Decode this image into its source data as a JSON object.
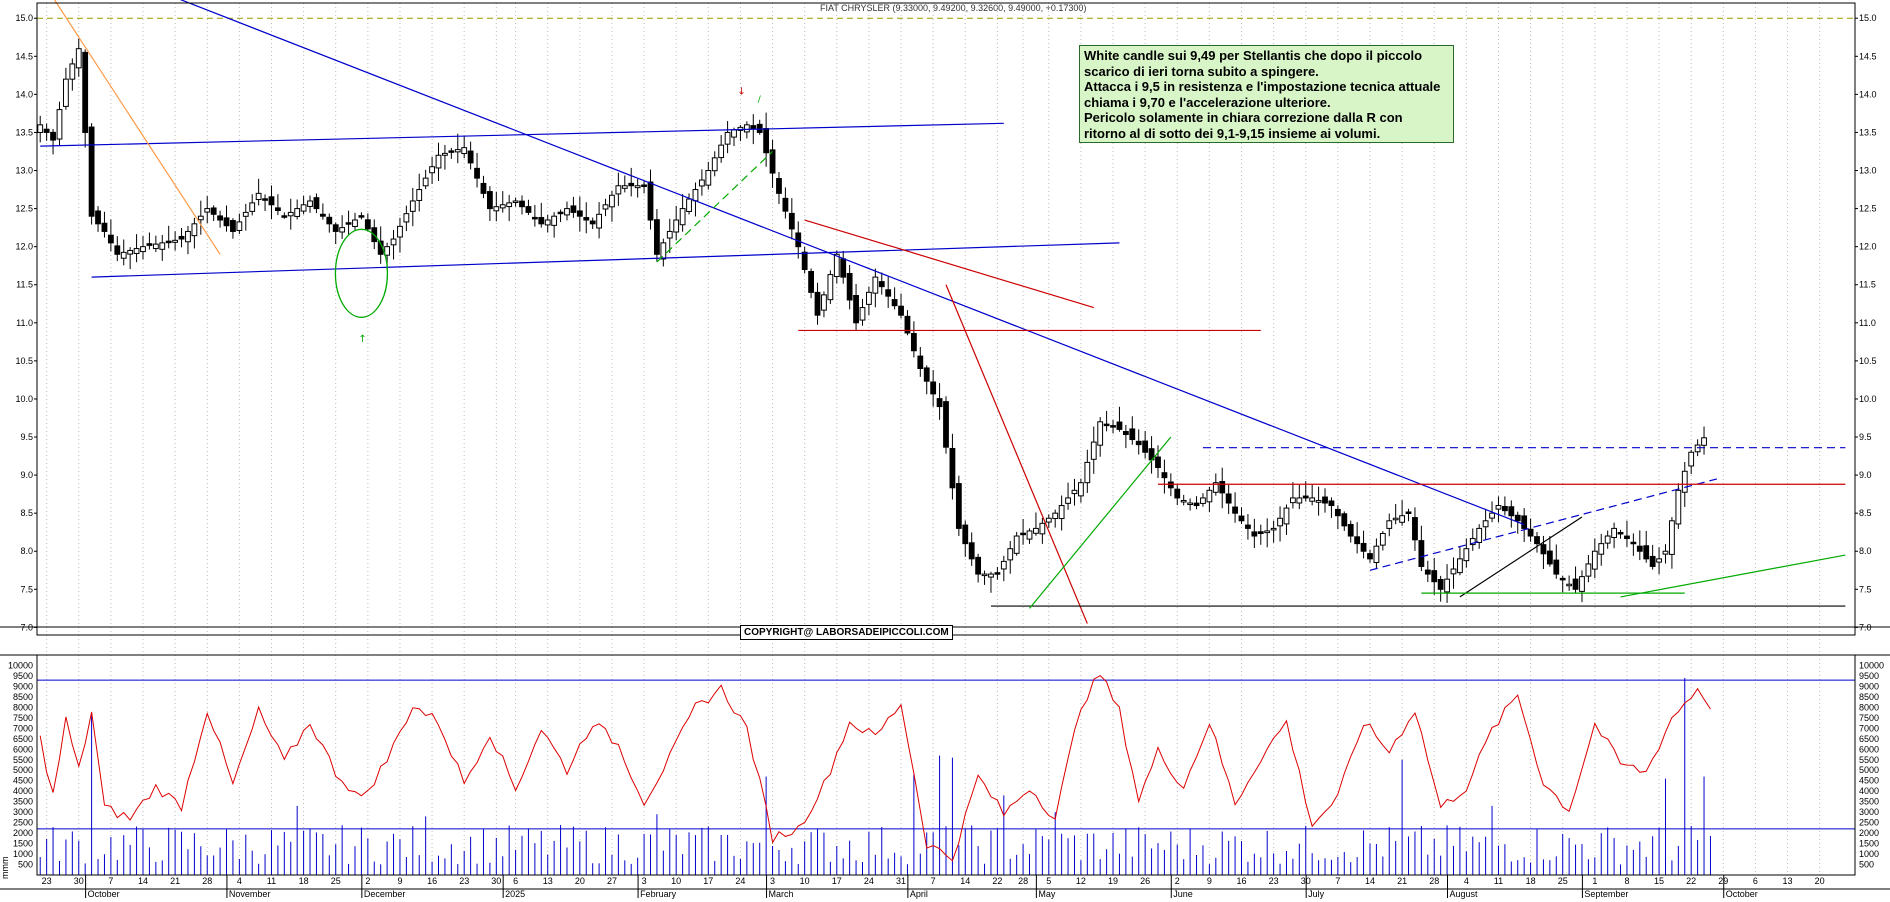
{
  "header": {
    "title": "FIAT CHRYSLER (9.33000, 9.49200, 9.32600, 9.49000, +0.17300)"
  },
  "annotation": {
    "lines": [
      "White candle sui 9,49 per Stellantis che dopo il piccolo",
      "scarico di ieri torna subito a spingere.",
      "Attacca i 9,5 in resistenza e l'impostazione tecnica attuale",
      "chiama i 9,70 e l'accelerazione ulteriore.",
      "Pericolo solamente in chiara correzione dalla R con",
      "ritorno al di sotto dei 9,1-9,15 insieme ai volumi."
    ]
  },
  "copyright": "COPYRIGHT@ LABORSADEIPICCOLI.COM",
  "volume_label": "mmm",
  "colors": {
    "candle_body": "#000000",
    "trend_blue": "#0000cc",
    "support_red": "#cc0000",
    "trend_green": "#00aa00",
    "volume_bars": "#0000cc",
    "volume_line": "#dd0000",
    "ref_dash": "#999900"
  },
  "chart_data": [
    {
      "type": "candlestick",
      "title": "FIAT CHRYSLER (9.33000, 9.49200, 9.32600, 9.49000, +0.17300)",
      "ylim": [
        6.9,
        15.2
      ],
      "y_ticks": [
        "7.0",
        "7.5",
        "8.0",
        "8.5",
        "9.0",
        "9.5",
        "10.0",
        "10.5",
        "11.0",
        "11.5",
        "12.0",
        "12.5",
        "13.0",
        "13.5",
        "14.0",
        "14.5",
        "15.0"
      ],
      "anchors": [
        {
          "i": 0,
          "c": 13.6
        },
        {
          "i": 2,
          "c": 13.4
        },
        {
          "i": 4,
          "c": 14.2
        },
        {
          "i": 6,
          "c": 14.6
        },
        {
          "i": 8,
          "c": 12.4
        },
        {
          "i": 10,
          "c": 12.2
        },
        {
          "i": 12,
          "c": 11.9
        },
        {
          "i": 16,
          "c": 12.0
        },
        {
          "i": 22,
          "c": 12.1
        },
        {
          "i": 26,
          "c": 12.5
        },
        {
          "i": 30,
          "c": 12.2
        },
        {
          "i": 34,
          "c": 12.7
        },
        {
          "i": 38,
          "c": 12.4
        },
        {
          "i": 42,
          "c": 12.6
        },
        {
          "i": 46,
          "c": 12.2
        },
        {
          "i": 50,
          "c": 12.4
        },
        {
          "i": 53,
          "c": 11.9
        },
        {
          "i": 55,
          "c": 12.1
        },
        {
          "i": 58,
          "c": 12.6
        },
        {
          "i": 62,
          "c": 13.2
        },
        {
          "i": 66,
          "c": 13.3
        },
        {
          "i": 70,
          "c": 12.5
        },
        {
          "i": 74,
          "c": 12.6
        },
        {
          "i": 78,
          "c": 12.3
        },
        {
          "i": 82,
          "c": 12.5
        },
        {
          "i": 86,
          "c": 12.3
        },
        {
          "i": 90,
          "c": 12.8
        },
        {
          "i": 94,
          "c": 12.8
        },
        {
          "i": 96,
          "c": 11.9
        },
        {
          "i": 100,
          "c": 12.5
        },
        {
          "i": 104,
          "c": 13.0
        },
        {
          "i": 107,
          "c": 13.5
        },
        {
          "i": 110,
          "c": 13.6
        },
        {
          "i": 112,
          "c": 13.5
        },
        {
          "i": 115,
          "c": 12.7
        },
        {
          "i": 118,
          "c": 12.0
        },
        {
          "i": 121,
          "c": 11.1
        },
        {
          "i": 124,
          "c": 11.9
        },
        {
          "i": 127,
          "c": 11.0
        },
        {
          "i": 130,
          "c": 11.6
        },
        {
          "i": 134,
          "c": 11.1
        },
        {
          "i": 137,
          "c": 10.4
        },
        {
          "i": 140,
          "c": 9.9
        },
        {
          "i": 143,
          "c": 8.3
        },
        {
          "i": 146,
          "c": 7.7
        },
        {
          "i": 149,
          "c": 7.7
        },
        {
          "i": 152,
          "c": 8.2
        },
        {
          "i": 155,
          "c": 8.3
        },
        {
          "i": 158,
          "c": 8.5
        },
        {
          "i": 162,
          "c": 8.9
        },
        {
          "i": 165,
          "c": 9.7
        },
        {
          "i": 168,
          "c": 9.6
        },
        {
          "i": 171,
          "c": 9.4
        },
        {
          "i": 174,
          "c": 9.1
        },
        {
          "i": 177,
          "c": 8.7
        },
        {
          "i": 180,
          "c": 8.6
        },
        {
          "i": 183,
          "c": 8.9
        },
        {
          "i": 186,
          "c": 8.5
        },
        {
          "i": 189,
          "c": 8.2
        },
        {
          "i": 192,
          "c": 8.3
        },
        {
          "i": 195,
          "c": 8.7
        },
        {
          "i": 198,
          "c": 8.7
        },
        {
          "i": 201,
          "c": 8.6
        },
        {
          "i": 204,
          "c": 8.2
        },
        {
          "i": 207,
          "c": 7.9
        },
        {
          "i": 210,
          "c": 8.4
        },
        {
          "i": 213,
          "c": 8.5
        },
        {
          "i": 215,
          "c": 7.8
        },
        {
          "i": 218,
          "c": 7.5
        },
        {
          "i": 221,
          "c": 7.9
        },
        {
          "i": 224,
          "c": 8.3
        },
        {
          "i": 227,
          "c": 8.6
        },
        {
          "i": 230,
          "c": 8.4
        },
        {
          "i": 233,
          "c": 8.1
        },
        {
          "i": 236,
          "c": 7.7
        },
        {
          "i": 239,
          "c": 7.5
        },
        {
          "i": 242,
          "c": 8.0
        },
        {
          "i": 245,
          "c": 8.3
        },
        {
          "i": 248,
          "c": 8.1
        },
        {
          "i": 251,
          "c": 7.8
        },
        {
          "i": 253,
          "c": 8.0
        },
        {
          "i": 255,
          "c": 8.8
        },
        {
          "i": 257,
          "c": 9.3
        },
        {
          "i": 259,
          "c": 9.49
        }
      ],
      "trendlines": [
        {
          "color": "#0000cc",
          "from": [
            0,
            13.32
          ],
          "to": [
            150,
            13.62
          ]
        },
        {
          "color": "#0000cc",
          "from": [
            8,
            11.6
          ],
          "to": [
            168,
            12.05
          ]
        },
        {
          "color": "#0000cc",
          "from": [
            5,
            15.8
          ],
          "to": [
            231,
            8.35
          ]
        },
        {
          "color": "#0000cc",
          "dash": true,
          "from": [
            207,
            7.75
          ],
          "to": [
            261,
            8.95
          ]
        },
        {
          "color": "#0000cc",
          "dash": true,
          "from": [
            181,
            9.36
          ],
          "to": [
            281,
            9.36
          ]
        },
        {
          "color": "#ff9944",
          "from": [
            1,
            15.4
          ],
          "to": [
            28,
            11.9
          ]
        },
        {
          "color": "#00aa00",
          "dash": true,
          "from": [
            96,
            11.8
          ],
          "to": [
            114,
            13.25
          ]
        },
        {
          "color": "#cc0000",
          "from": [
            119,
            12.35
          ],
          "to": [
            164,
            11.2
          ]
        },
        {
          "color": "#cc0000",
          "from": [
            118,
            10.9
          ],
          "to": [
            190,
            10.9
          ]
        },
        {
          "color": "#cc0000",
          "from": [
            141,
            11.5
          ],
          "to": [
            163,
            7.05
          ]
        },
        {
          "color": "#cc0000",
          "from": [
            174,
            8.88
          ],
          "to": [
            281,
            8.88
          ]
        },
        {
          "color": "#000000",
          "from": [
            148,
            7.28
          ],
          "to": [
            281,
            7.28
          ]
        },
        {
          "color": "#00aa00",
          "from": [
            154,
            7.25
          ],
          "to": [
            176,
            9.5
          ]
        },
        {
          "color": "#000000",
          "from": [
            221,
            7.4
          ],
          "to": [
            240,
            8.45
          ]
        },
        {
          "color": "#00aa00",
          "from": [
            215,
            7.45
          ],
          "to": [
            256,
            7.45
          ]
        },
        {
          "color": "#00aa00",
          "from": [
            246,
            7.4
          ],
          "to": [
            281,
            7.95
          ]
        }
      ]
    },
    {
      "type": "bar+line",
      "ylim": [
        0,
        10500
      ],
      "y_ticks": [
        "500",
        "1000",
        "1500",
        "2000",
        "2500",
        "3000",
        "3500",
        "4000",
        "4500",
        "5000",
        "5500",
        "6000",
        "6500",
        "7000",
        "7500",
        "8000",
        "8500",
        "9000",
        "9500",
        "10000"
      ],
      "hlines": [
        9300,
        2200
      ],
      "line_anchors": [
        {
          "i": 0,
          "v": 6500
        },
        {
          "i": 2,
          "v": 3800
        },
        {
          "i": 4,
          "v": 7400
        },
        {
          "i": 6,
          "v": 5000
        },
        {
          "i": 8,
          "v": 7800
        },
        {
          "i": 10,
          "v": 3200
        },
        {
          "i": 14,
          "v": 2700
        },
        {
          "i": 18,
          "v": 4200
        },
        {
          "i": 22,
          "v": 3300
        },
        {
          "i": 26,
          "v": 7900
        },
        {
          "i": 30,
          "v": 4300
        },
        {
          "i": 34,
          "v": 7800
        },
        {
          "i": 38,
          "v": 5400
        },
        {
          "i": 42,
          "v": 7300
        },
        {
          "i": 46,
          "v": 4900
        },
        {
          "i": 50,
          "v": 3600
        },
        {
          "i": 54,
          "v": 5500
        },
        {
          "i": 58,
          "v": 8100
        },
        {
          "i": 62,
          "v": 7300
        },
        {
          "i": 66,
          "v": 4400
        },
        {
          "i": 70,
          "v": 6800
        },
        {
          "i": 74,
          "v": 4100
        },
        {
          "i": 78,
          "v": 7000
        },
        {
          "i": 82,
          "v": 5000
        },
        {
          "i": 86,
          "v": 7300
        },
        {
          "i": 90,
          "v": 6200
        },
        {
          "i": 94,
          "v": 3500
        },
        {
          "i": 98,
          "v": 5600
        },
        {
          "i": 102,
          "v": 8000
        },
        {
          "i": 106,
          "v": 8900
        },
        {
          "i": 110,
          "v": 7000
        },
        {
          "i": 114,
          "v": 1800
        },
        {
          "i": 118,
          "v": 2200
        },
        {
          "i": 122,
          "v": 4300
        },
        {
          "i": 126,
          "v": 7300
        },
        {
          "i": 130,
          "v": 6600
        },
        {
          "i": 134,
          "v": 8200
        },
        {
          "i": 138,
          "v": 1500
        },
        {
          "i": 142,
          "v": 800
        },
        {
          "i": 146,
          "v": 4700
        },
        {
          "i": 150,
          "v": 2900
        },
        {
          "i": 154,
          "v": 4200
        },
        {
          "i": 158,
          "v": 2700
        },
        {
          "i": 162,
          "v": 8100
        },
        {
          "i": 165,
          "v": 9600
        },
        {
          "i": 168,
          "v": 7800
        },
        {
          "i": 171,
          "v": 3600
        },
        {
          "i": 174,
          "v": 5900
        },
        {
          "i": 178,
          "v": 4200
        },
        {
          "i": 182,
          "v": 7300
        },
        {
          "i": 186,
          "v": 3400
        },
        {
          "i": 190,
          "v": 5600
        },
        {
          "i": 194,
          "v": 7300
        },
        {
          "i": 198,
          "v": 2400
        },
        {
          "i": 202,
          "v": 3700
        },
        {
          "i": 206,
          "v": 7300
        },
        {
          "i": 210,
          "v": 5900
        },
        {
          "i": 214,
          "v": 7900
        },
        {
          "i": 218,
          "v": 3200
        },
        {
          "i": 222,
          "v": 4200
        },
        {
          "i": 226,
          "v": 6900
        },
        {
          "i": 230,
          "v": 8600
        },
        {
          "i": 234,
          "v": 4400
        },
        {
          "i": 238,
          "v": 3100
        },
        {
          "i": 242,
          "v": 7200
        },
        {
          "i": 246,
          "v": 5300
        },
        {
          "i": 250,
          "v": 4900
        },
        {
          "i": 254,
          "v": 7500
        },
        {
          "i": 258,
          "v": 8900
        },
        {
          "i": 260,
          "v": 8100
        }
      ],
      "bar_spikes": [
        {
          "i": 8,
          "v": 7700
        },
        {
          "i": 40,
          "v": 3300
        },
        {
          "i": 60,
          "v": 2800
        },
        {
          "i": 96,
          "v": 2900
        },
        {
          "i": 113,
          "v": 4700
        },
        {
          "i": 136,
          "v": 4800
        },
        {
          "i": 140,
          "v": 5700
        },
        {
          "i": 142,
          "v": 5600
        },
        {
          "i": 150,
          "v": 3800
        },
        {
          "i": 158,
          "v": 3000
        },
        {
          "i": 212,
          "v": 5500
        },
        {
          "i": 226,
          "v": 3300
        },
        {
          "i": 253,
          "v": 4600
        },
        {
          "i": 256,
          "v": 9400
        },
        {
          "i": 259,
          "v": 4700
        },
        {
          "i": 261,
          "v": 4900
        }
      ]
    }
  ],
  "x_day_ticks": [
    {
      "i": 1,
      "t": "23"
    },
    {
      "i": 6,
      "t": "30"
    },
    {
      "i": 11,
      "t": "7"
    },
    {
      "i": 16,
      "t": "14"
    },
    {
      "i": 21,
      "t": "21"
    },
    {
      "i": 26,
      "t": "28"
    },
    {
      "i": 31,
      "t": "4"
    },
    {
      "i": 36,
      "t": "11"
    },
    {
      "i": 41,
      "t": "18"
    },
    {
      "i": 46,
      "t": "25"
    },
    {
      "i": 51,
      "t": "2"
    },
    {
      "i": 56,
      "t": "9"
    },
    {
      "i": 61,
      "t": "16"
    },
    {
      "i": 66,
      "t": "23"
    },
    {
      "i": 71,
      "t": "30"
    },
    {
      "i": 74,
      "t": "6"
    },
    {
      "i": 79,
      "t": "13"
    },
    {
      "i": 84,
      "t": "20"
    },
    {
      "i": 89,
      "t": "27"
    },
    {
      "i": 94,
      "t": "3"
    },
    {
      "i": 99,
      "t": "10"
    },
    {
      "i": 104,
      "t": "17"
    },
    {
      "i": 109,
      "t": "24"
    },
    {
      "i": 114,
      "t": "3"
    },
    {
      "i": 119,
      "t": "10"
    },
    {
      "i": 124,
      "t": "17"
    },
    {
      "i": 129,
      "t": "24"
    },
    {
      "i": 134,
      "t": "31"
    },
    {
      "i": 139,
      "t": "7"
    },
    {
      "i": 144,
      "t": "14"
    },
    {
      "i": 149,
      "t": "22"
    },
    {
      "i": 153,
      "t": "28"
    },
    {
      "i": 157,
      "t": "5"
    },
    {
      "i": 162,
      "t": "12"
    },
    {
      "i": 167,
      "t": "19"
    },
    {
      "i": 172,
      "t": "26"
    },
    {
      "i": 177,
      "t": "2"
    },
    {
      "i": 182,
      "t": "9"
    },
    {
      "i": 187,
      "t": "16"
    },
    {
      "i": 192,
      "t": "23"
    },
    {
      "i": 197,
      "t": "30"
    },
    {
      "i": 202,
      "t": "7"
    },
    {
      "i": 207,
      "t": "14"
    },
    {
      "i": 212,
      "t": "21"
    },
    {
      "i": 217,
      "t": "28"
    },
    {
      "i": 222,
      "t": "4"
    },
    {
      "i": 227,
      "t": "11"
    },
    {
      "i": 232,
      "t": "18"
    },
    {
      "i": 237,
      "t": "25"
    },
    {
      "i": 242,
      "t": "1"
    },
    {
      "i": 247,
      "t": "8"
    },
    {
      "i": 252,
      "t": "15"
    },
    {
      "i": 257,
      "t": "22"
    },
    {
      "i": 262,
      "t": "29"
    },
    {
      "i": 267,
      "t": "6"
    },
    {
      "i": 272,
      "t": "13"
    },
    {
      "i": 277,
      "t": "20"
    }
  ],
  "x_month_ticks": [
    {
      "i": 8,
      "t": "October"
    },
    {
      "i": 30,
      "t": "November"
    },
    {
      "i": 51,
      "t": "December"
    },
    {
      "i": 73,
      "t": "2025"
    },
    {
      "i": 94,
      "t": "February"
    },
    {
      "i": 114,
      "t": "March"
    },
    {
      "i": 136,
      "t": "April"
    },
    {
      "i": 156,
      "t": "May"
    },
    {
      "i": 177,
      "t": "June"
    },
    {
      "i": 198,
      "t": "July"
    },
    {
      "i": 220,
      "t": "August"
    },
    {
      "i": 241,
      "t": "September"
    },
    {
      "i": 263,
      "t": "October"
    }
  ]
}
